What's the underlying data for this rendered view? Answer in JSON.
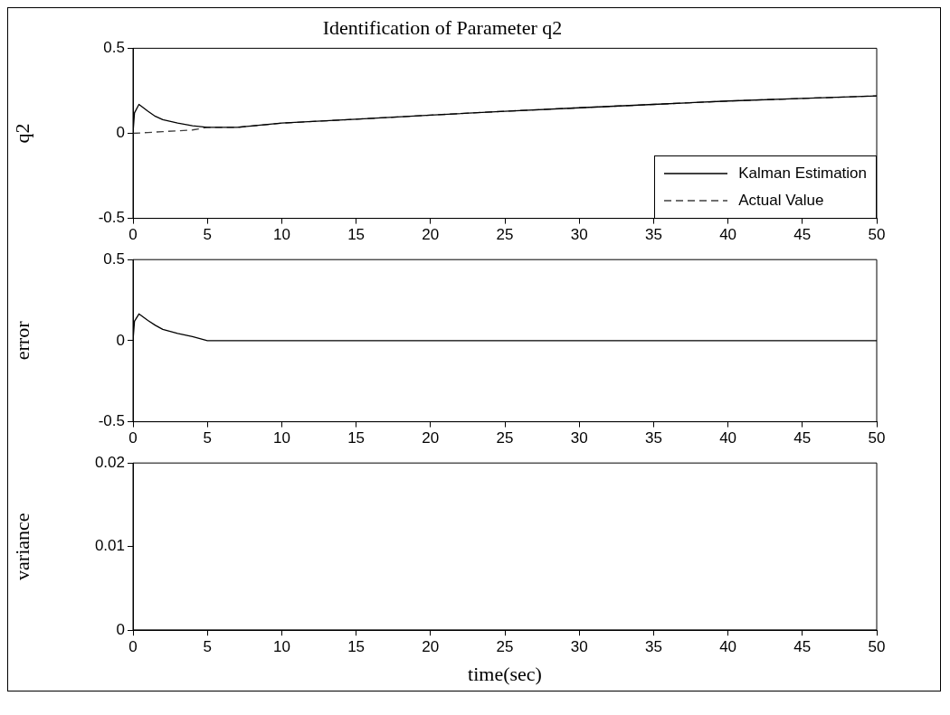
{
  "chart_data": [
    {
      "type": "line",
      "title": "Identification of Parameter q2",
      "ylabel": "q2",
      "xlim": [
        0,
        50
      ],
      "xticks": [
        0,
        5,
        10,
        15,
        20,
        25,
        30,
        35,
        40,
        45,
        50
      ],
      "ylim": [
        -0.5,
        0.5
      ],
      "yticks": [
        -0.5,
        0,
        0.5
      ],
      "grid": false,
      "legend": "bottom right",
      "marker": "none",
      "series": [
        {
          "name": "Kalman Estimation",
          "color": "#000000",
          "line_style": "solid",
          "x": [
            0,
            0.1,
            0.4,
            1,
            1.5,
            2,
            3,
            4,
            5,
            7,
            10,
            15,
            20,
            25,
            30,
            35,
            40,
            45,
            50
          ],
          "values": [
            0,
            0.12,
            0.17,
            0.13,
            0.1,
            0.08,
            0.06,
            0.045,
            0.035,
            0.035,
            0.06,
            0.083,
            0.107,
            0.13,
            0.15,
            0.17,
            0.19,
            0.205,
            0.22
          ]
        },
        {
          "name": "Actual Value",
          "color": "#404040",
          "line_style": "dashed",
          "x": [
            0,
            1,
            2,
            3,
            4,
            5,
            7,
            10,
            15,
            20,
            25,
            30,
            35,
            40,
            45,
            50
          ],
          "values": [
            0,
            0.005,
            0.01,
            0.015,
            0.02,
            0.035,
            0.035,
            0.06,
            0.083,
            0.107,
            0.13,
            0.15,
            0.17,
            0.19,
            0.205,
            0.22
          ]
        }
      ]
    },
    {
      "type": "line",
      "ylabel": "error",
      "xlim": [
        0,
        50
      ],
      "xticks": [
        0,
        5,
        10,
        15,
        20,
        25,
        30,
        35,
        40,
        45,
        50
      ],
      "ylim": [
        -0.5,
        0.5
      ],
      "yticks": [
        -0.5,
        0,
        0.5
      ],
      "grid": false,
      "marker": "none",
      "series": [
        {
          "color": "#000000",
          "x": [
            0,
            0.1,
            0.4,
            1,
            1.5,
            2,
            3,
            4,
            5,
            50
          ],
          "values": [
            0,
            0.12,
            0.165,
            0.125,
            0.095,
            0.07,
            0.045,
            0.025,
            0,
            0
          ]
        }
      ]
    },
    {
      "type": "line",
      "ylabel": "variance",
      "xlabel": "time(sec)",
      "xlim": [
        0,
        50
      ],
      "xticks": [
        0,
        5,
        10,
        15,
        20,
        25,
        30,
        35,
        40,
        45,
        50
      ],
      "ylim": [
        0,
        0.02
      ],
      "yticks": [
        0,
        0.01,
        0.02
      ],
      "grid": false,
      "marker": "none",
      "series": [
        {
          "color": "#000000",
          "x": [
            0,
            50
          ],
          "values": [
            0,
            0
          ]
        }
      ]
    }
  ]
}
